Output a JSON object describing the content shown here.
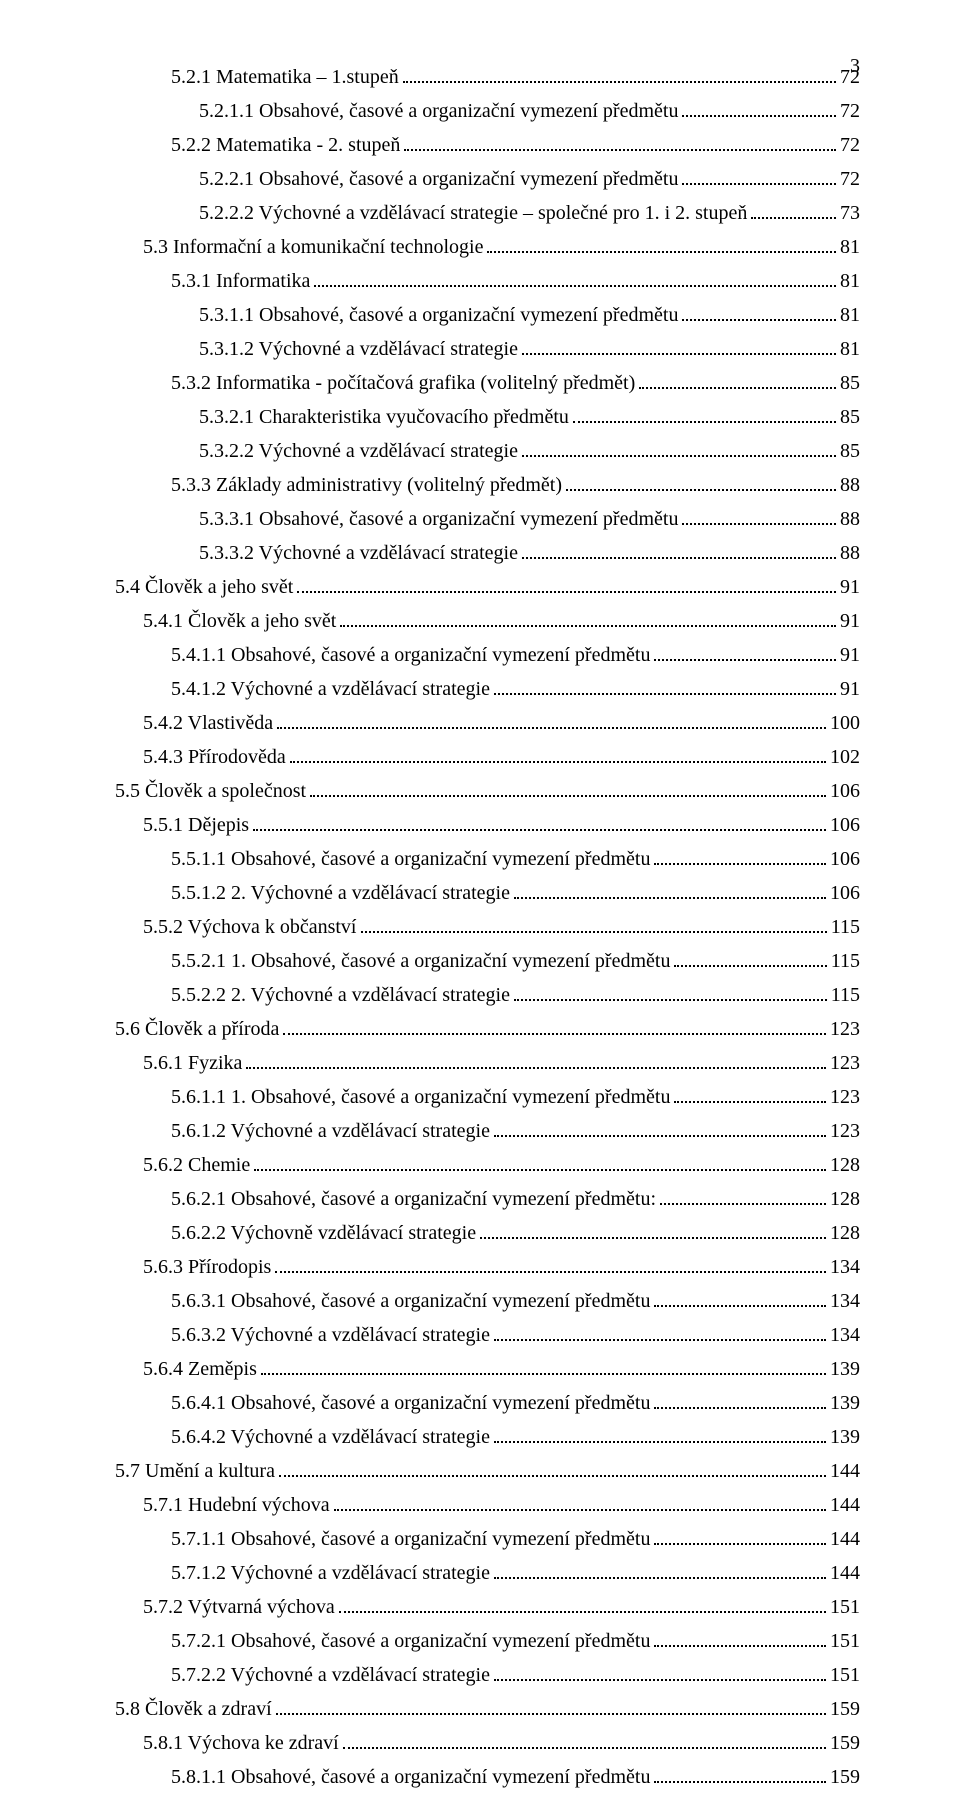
{
  "page_number": "3",
  "toc": [
    {
      "level": 2,
      "label": "5.2.1   Matematika – 1.stupeň",
      "page": "72"
    },
    {
      "level": 3,
      "label": "5.2.1.1   Obsahové, časové a organizační vymezení předmětu",
      "page": "72"
    },
    {
      "level": 2,
      "label": "5.2.2   Matematika - 2. stupeň",
      "page": "72"
    },
    {
      "level": 3,
      "label": "5.2.2.1   Obsahové, časové a organizační vymezení předmětu",
      "page": "72"
    },
    {
      "level": 3,
      "label": "5.2.2.2   Výchovné a vzdělávací strategie – společné pro 1. i 2. stupeň",
      "page": "73"
    },
    {
      "level": 1,
      "label": "5.3   Informační a komunikační technologie",
      "page": "81"
    },
    {
      "level": 2,
      "label": "5.3.1   Informatika",
      "page": "81"
    },
    {
      "level": 3,
      "label": "5.3.1.1   Obsahové, časové a organizační vymezení předmětu",
      "page": "81"
    },
    {
      "level": 3,
      "label": "5.3.1.2   Výchovné a vzdělávací strategie",
      "page": "81"
    },
    {
      "level": 2,
      "label": "5.3.2   Informatika - počítačová grafika (volitelný předmět)",
      "page": "85"
    },
    {
      "level": 3,
      "label": "5.3.2.1   Charakteristika vyučovacího předmětu",
      "page": "85"
    },
    {
      "level": 3,
      "label": "5.3.2.2   Výchovné a vzdělávací strategie",
      "page": "85"
    },
    {
      "level": 2,
      "label": "5.3.3   Základy administrativy (volitelný předmět)",
      "page": "88"
    },
    {
      "level": 3,
      "label": "5.3.3.1   Obsahové, časové a organizační vymezení předmětu",
      "page": "88"
    },
    {
      "level": 3,
      "label": "5.3.3.2   Výchovné a vzdělávací strategie",
      "page": "88"
    },
    {
      "level": 0,
      "label": "5.4   Člověk a jeho svět",
      "page": "91"
    },
    {
      "level": 1,
      "label": "5.4.1   Člověk a jeho svět",
      "page": "91"
    },
    {
      "level": 2,
      "label": "5.4.1.1   Obsahové, časové a organizační vymezení předmětu",
      "page": "91"
    },
    {
      "level": 2,
      "label": "5.4.1.2   Výchovné a vzdělávací strategie",
      "page": "91"
    },
    {
      "level": 1,
      "label": "5.4.2   Vlastivěda",
      "page": "100"
    },
    {
      "level": 1,
      "label": "5.4.3   Přírodověda",
      "page": "102"
    },
    {
      "level": 0,
      "label": "5.5   Člověk a společnost",
      "page": "106"
    },
    {
      "level": 1,
      "label": "5.5.1   Dějepis",
      "page": "106"
    },
    {
      "level": 2,
      "label": "5.5.1.1   Obsahové, časové a organizační vymezení předmětu",
      "page": "106"
    },
    {
      "level": 2,
      "label": "5.5.1.2   2. Výchovné a vzdělávací strategie",
      "page": "106"
    },
    {
      "level": 1,
      "label": "5.5.2   Výchova k občanství",
      "page": "115"
    },
    {
      "level": 2,
      "label": "5.5.2.1   1. Obsahové, časové a organizační vymezení předmětu",
      "page": "115"
    },
    {
      "level": 2,
      "label": "5.5.2.2   2. Výchovné a vzdělávací strategie",
      "page": "115"
    },
    {
      "level": 0,
      "label": "5.6   Člověk a příroda",
      "page": "123"
    },
    {
      "level": 1,
      "label": "5.6.1   Fyzika",
      "page": "123"
    },
    {
      "level": 2,
      "label": "5.6.1.1   1. Obsahové, časové a organizační vymezení předmětu",
      "page": "123"
    },
    {
      "level": 2,
      "label": "5.6.1.2   Výchovné a vzdělávací strategie",
      "page": "123"
    },
    {
      "level": 1,
      "label": "5.6.2   Chemie",
      "page": "128"
    },
    {
      "level": 2,
      "label": "5.6.2.1   Obsahové, časové a organizační vymezení předmětu:",
      "page": "128"
    },
    {
      "level": 2,
      "label": "5.6.2.2   Výchovně vzdělávací strategie",
      "page": "128"
    },
    {
      "level": 1,
      "label": "5.6.3   Přírodopis",
      "page": "134"
    },
    {
      "level": 2,
      "label": "5.6.3.1   Obsahové, časové a organizační vymezení předmětu",
      "page": "134"
    },
    {
      "level": 2,
      "label": "5.6.3.2   Výchovné a vzdělávací strategie",
      "page": "134"
    },
    {
      "level": 1,
      "label": "5.6.4   Zeměpis",
      "page": "139"
    },
    {
      "level": 2,
      "label": "5.6.4.1   Obsahové, časové a organizační vymezení předmětu",
      "page": "139"
    },
    {
      "level": 2,
      "label": "5.6.4.2   Výchovné a vzdělávací strategie",
      "page": "139"
    },
    {
      "level": 0,
      "label": "5.7   Umění a kultura",
      "page": "144"
    },
    {
      "level": 1,
      "label": "5.7.1   Hudební výchova",
      "page": "144"
    },
    {
      "level": 2,
      "label": "5.7.1.1   Obsahové, časové a organizační vymezení předmětu",
      "page": "144"
    },
    {
      "level": 2,
      "label": "5.7.1.2   Výchovné a vzdělávací strategie",
      "page": "144"
    },
    {
      "level": 1,
      "label": "5.7.2   Výtvarná výchova",
      "page": "151"
    },
    {
      "level": 2,
      "label": "5.7.2.1   Obsahové, časové a organizační vymezení předmětu",
      "page": "151"
    },
    {
      "level": 2,
      "label": "5.7.2.2   Výchovné a vzdělávací strategie",
      "page": "151"
    },
    {
      "level": 0,
      "label": "5.8   Člověk a zdraví",
      "page": "159"
    },
    {
      "level": 1,
      "label": "5.8.1   Výchova ke zdraví",
      "page": "159"
    },
    {
      "level": 2,
      "label": "5.8.1.1   Obsahové, časové a organizační vymezení předmětu",
      "page": "159"
    }
  ]
}
